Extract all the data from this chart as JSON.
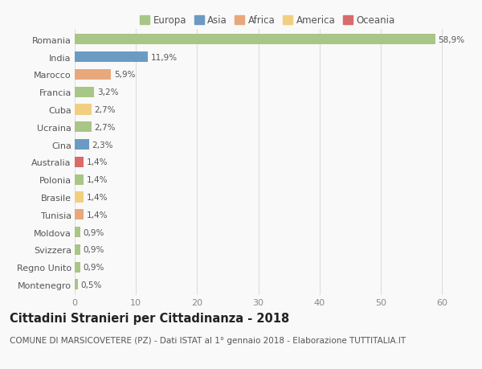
{
  "categories": [
    "Romania",
    "India",
    "Marocco",
    "Francia",
    "Cuba",
    "Ucraina",
    "Cina",
    "Australia",
    "Polonia",
    "Brasile",
    "Tunisia",
    "Moldova",
    "Svizzera",
    "Regno Unito",
    "Montenegro"
  ],
  "values": [
    58.9,
    11.9,
    5.9,
    3.2,
    2.7,
    2.7,
    2.3,
    1.4,
    1.4,
    1.4,
    1.4,
    0.9,
    0.9,
    0.9,
    0.5
  ],
  "labels": [
    "58,9%",
    "11,9%",
    "5,9%",
    "3,2%",
    "2,7%",
    "2,7%",
    "2,3%",
    "1,4%",
    "1,4%",
    "1,4%",
    "1,4%",
    "0,9%",
    "0,9%",
    "0,9%",
    "0,5%"
  ],
  "continents": [
    "Europa",
    "Asia",
    "Africa",
    "Europa",
    "America",
    "Europa",
    "Asia",
    "Oceania",
    "Europa",
    "America",
    "Africa",
    "Europa",
    "Europa",
    "Europa",
    "Europa"
  ],
  "continent_colors": {
    "Europa": "#a8c686",
    "Asia": "#6b9bc3",
    "Africa": "#e8a87c",
    "America": "#f0d080",
    "Oceania": "#d96b6b"
  },
  "legend_order": [
    "Europa",
    "Asia",
    "Africa",
    "America",
    "Oceania"
  ],
  "xlim": [
    0,
    63
  ],
  "xticks": [
    0,
    10,
    20,
    30,
    40,
    50,
    60
  ],
  "title": "Cittadini Stranieri per Cittadinanza - 2018",
  "subtitle": "COMUNE DI MARSICOVETERE (PZ) - Dati ISTAT al 1° gennaio 2018 - Elaborazione TUTTITALIA.IT",
  "background_color": "#f9f9f9",
  "bar_height": 0.6,
  "grid_color": "#dddddd",
  "title_fontsize": 10.5,
  "subtitle_fontsize": 7.5,
  "label_fontsize": 7.5,
  "tick_fontsize": 8,
  "legend_fontsize": 8.5
}
